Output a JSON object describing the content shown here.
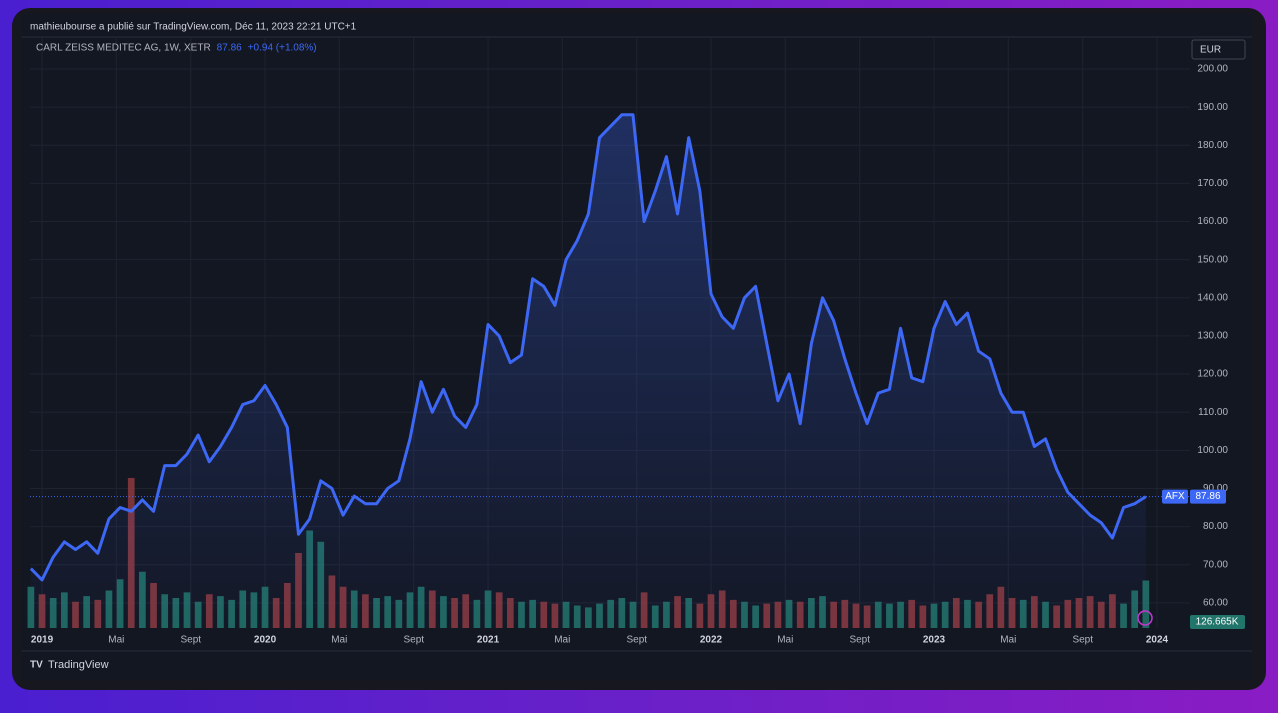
{
  "header": "mathieubourse a publié sur TradingView.com, Déc 11, 2023 22:21 UTC+1",
  "footer": "TradingView",
  "chart_data": {
    "type": "line",
    "title": "CARL ZEISS MEDITEC AG, 1W, XETR",
    "change": "+0.94 (+1.08%)",
    "currency": "EUR",
    "symbol": "AFX",
    "color": "#3d68f5",
    "x": [
      2018.95,
      2019,
      2019.05,
      2019.1,
      2019.15,
      2019.2,
      2019.25,
      2019.3,
      2019.35,
      2019.4,
      2019.45,
      2019.5,
      2019.55,
      2019.6,
      2019.65,
      2019.7,
      2019.75,
      2019.8,
      2019.85,
      2019.9,
      2019.95,
      2020,
      2020.05,
      2020.1,
      2020.15,
      2020.2,
      2020.25,
      2020.3,
      2020.35,
      2020.4,
      2020.45,
      2020.5,
      2020.55,
      2020.6,
      2020.65,
      2020.7,
      2020.75,
      2020.8,
      2020.85,
      2020.9,
      2020.95,
      2021,
      2021.05,
      2021.1,
      2021.15,
      2021.2,
      2021.25,
      2021.3,
      2021.35,
      2021.4,
      2021.45,
      2021.5,
      2021.55,
      2021.6,
      2021.65,
      2021.7,
      2021.75,
      2021.8,
      2021.85,
      2021.9,
      2021.95,
      2022,
      2022.05,
      2022.1,
      2022.15,
      2022.2,
      2022.25,
      2022.3,
      2022.35,
      2022.4,
      2022.45,
      2022.5,
      2022.55,
      2022.6,
      2022.65,
      2022.7,
      2022.75,
      2022.8,
      2022.85,
      2022.9,
      2022.95,
      2023,
      2023.05,
      2023.1,
      2023.15,
      2023.2,
      2023.25,
      2023.3,
      2023.35,
      2023.4,
      2023.45,
      2023.5,
      2023.55,
      2023.6,
      2023.65,
      2023.7,
      2023.75,
      2023.8,
      2023.85,
      2023.9,
      2023.95
    ],
    "values": [
      69,
      66,
      72,
      76,
      74,
      76,
      73,
      82,
      85,
      84,
      87,
      84,
      96,
      96,
      99,
      104,
      97,
      101,
      106,
      112,
      113,
      117,
      112,
      106,
      78,
      82,
      92,
      90,
      83,
      88,
      86,
      86,
      90,
      92,
      103,
      118,
      110,
      116,
      109,
      106,
      112,
      133,
      130,
      123,
      125,
      145,
      143,
      138,
      150,
      155,
      162,
      182,
      185,
      188,
      188,
      160,
      168,
      177,
      162,
      182,
      168,
      141,
      135,
      132,
      140,
      143,
      128,
      113,
      120,
      107,
      128,
      140,
      134,
      124,
      115,
      107,
      115,
      116,
      132,
      119,
      118,
      132,
      139,
      133,
      136,
      126,
      124,
      115,
      110,
      110,
      101,
      103,
      95,
      89,
      86,
      83,
      81,
      77,
      85,
      86,
      87.86
    ],
    "volume": {
      "up_color": "#22756b",
      "down_color": "#8e3a3e",
      "last_label": "126.665K",
      "values": [
        110000,
        90000,
        80000,
        95000,
        70000,
        85000,
        75000,
        100000,
        130000,
        400000,
        150000,
        120000,
        90000,
        80000,
        95000,
        70000,
        90000,
        85000,
        75000,
        100000,
        95000,
        110000,
        80000,
        120000,
        200000,
        260000,
        230000,
        140000,
        110000,
        100000,
        90000,
        80000,
        85000,
        75000,
        95000,
        110000,
        100000,
        85000,
        80000,
        90000,
        75000,
        100000,
        95000,
        80000,
        70000,
        75000,
        70000,
        65000,
        70000,
        60000,
        55000,
        65000,
        75000,
        80000,
        70000,
        95000,
        60000,
        70000,
        85000,
        80000,
        65000,
        90000,
        100000,
        75000,
        70000,
        60000,
        65000,
        70000,
        75000,
        70000,
        80000,
        85000,
        70000,
        75000,
        65000,
        60000,
        70000,
        65000,
        70000,
        75000,
        60000,
        65000,
        70000,
        80000,
        75000,
        70000,
        90000,
        110000,
        80000,
        75000,
        85000,
        70000,
        60000,
        75000,
        80000,
        85000,
        70000,
        90000,
        65000,
        100000,
        126665
      ]
    },
    "xlim": [
      2018.946,
      2024.148
    ],
    "xticks": [
      {
        "value": 2019,
        "label": "2019"
      },
      {
        "value": 2019.333,
        "label": "Mai"
      },
      {
        "value": 2019.667,
        "label": "Sept"
      },
      {
        "value": 2020,
        "label": "2020"
      },
      {
        "value": 2020.333,
        "label": "Mai"
      },
      {
        "value": 2020.667,
        "label": "Sept"
      },
      {
        "value": 2021,
        "label": "2021"
      },
      {
        "value": 2021.333,
        "label": "Mai"
      },
      {
        "value": 2021.667,
        "label": "Sept"
      },
      {
        "value": 2022,
        "label": "2022"
      },
      {
        "value": 2022.333,
        "label": "Mai"
      },
      {
        "value": 2022.667,
        "label": "Sept"
      },
      {
        "value": 2023,
        "label": "2023"
      },
      {
        "value": 2023.333,
        "label": "Mai"
      },
      {
        "value": 2023.667,
        "label": "Sept"
      },
      {
        "value": 2024,
        "label": "2024"
      }
    ],
    "ylim": [
      53.4,
      208.4
    ],
    "yticks": [
      {
        "value": 60,
        "label": "60.00"
      },
      {
        "value": 70,
        "label": "70.00"
      },
      {
        "value": 80,
        "label": "80.00"
      },
      {
        "value": 90,
        "label": "90.00"
      },
      {
        "value": 100,
        "label": "100.00"
      },
      {
        "value": 110,
        "label": "110.00"
      },
      {
        "value": 120,
        "label": "120.00"
      },
      {
        "value": 130,
        "label": "130.00"
      },
      {
        "value": 140,
        "label": "140.00"
      },
      {
        "value": 150,
        "label": "150.00"
      },
      {
        "value": 160,
        "label": "160.00"
      },
      {
        "value": 170,
        "label": "170.00"
      },
      {
        "value": 180,
        "label": "180.00"
      },
      {
        "value": 190,
        "label": "190.00"
      },
      {
        "value": 200,
        "label": "200.00"
      }
    ],
    "grid": true
  }
}
